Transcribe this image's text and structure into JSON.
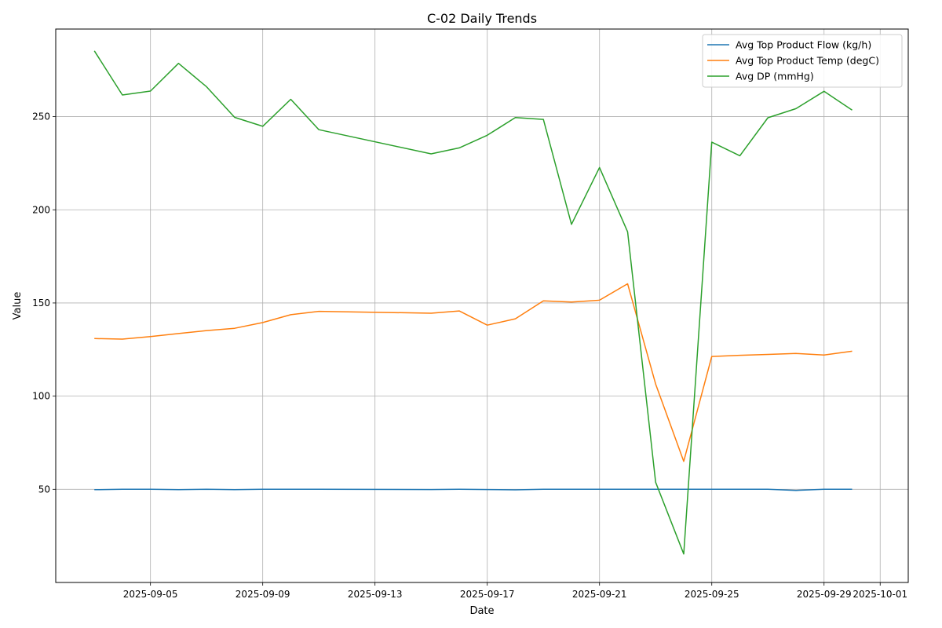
{
  "chart_data": {
    "type": "line",
    "title": "C-02 Daily Trends",
    "xlabel": "Date",
    "ylabel": "Value",
    "grid": true,
    "legend_position": "top-right",
    "x_type": "date",
    "xlim": [
      "2025-09-01T15:00",
      "2025-10-02"
    ],
    "ylim": [
      0,
      297
    ],
    "x_ticks": [
      "2025-09-05",
      "2025-09-09",
      "2025-09-13",
      "2025-09-17",
      "2025-09-21",
      "2025-09-25",
      "2025-09-29",
      "2025-10-01"
    ],
    "y_ticks": [
      50,
      100,
      150,
      200,
      250
    ],
    "x": [
      "2025-09-03",
      "2025-09-04",
      "2025-09-05",
      "2025-09-06",
      "2025-09-07",
      "2025-09-08",
      "2025-09-09",
      "2025-09-10",
      "2025-09-11",
      "2025-09-15",
      "2025-09-16",
      "2025-09-17",
      "2025-09-18",
      "2025-09-19",
      "2025-09-20",
      "2025-09-21",
      "2025-09-22",
      "2025-09-23",
      "2025-09-24",
      "2025-09-25",
      "2025-09-26",
      "2025-09-27",
      "2025-09-28",
      "2025-09-29",
      "2025-09-30"
    ],
    "series": [
      {
        "name": "Avg Top Product Flow (kg/h)",
        "color": "#1f77b4",
        "values": [
          49.8,
          50.0,
          50.0,
          49.8,
          50.0,
          49.8,
          50.0,
          50.0,
          50.0,
          49.9,
          50.0,
          49.9,
          49.7,
          50.0,
          50.0,
          50.0,
          50.0,
          50.0,
          50.0,
          50.0,
          50.0,
          50.0,
          49.4,
          50.0,
          50.0
        ]
      },
      {
        "name": "Avg Top Product Temp (degC)",
        "color": "#ff7f0e",
        "values": [
          130.9,
          130.6,
          132.0,
          133.6,
          135.2,
          136.4,
          139.5,
          143.7,
          145.5,
          144.5,
          145.7,
          138.1,
          141.5,
          151.1,
          150.5,
          151.5,
          160.3,
          106.5,
          65.0,
          121.3,
          121.9,
          122.4,
          122.9,
          122.1,
          124.1
        ]
      },
      {
        "name": "Avg DP (mmHg)",
        "color": "#2ca02c",
        "values": [
          285.3,
          261.6,
          263.7,
          278.6,
          266.0,
          249.6,
          244.8,
          259.3,
          243.0,
          230.0,
          233.2,
          240.0,
          249.5,
          248.5,
          192.2,
          222.7,
          188.2,
          53.8,
          15.3,
          236.3,
          229.0,
          249.4,
          254.3,
          263.6,
          253.5
        ]
      }
    ]
  }
}
